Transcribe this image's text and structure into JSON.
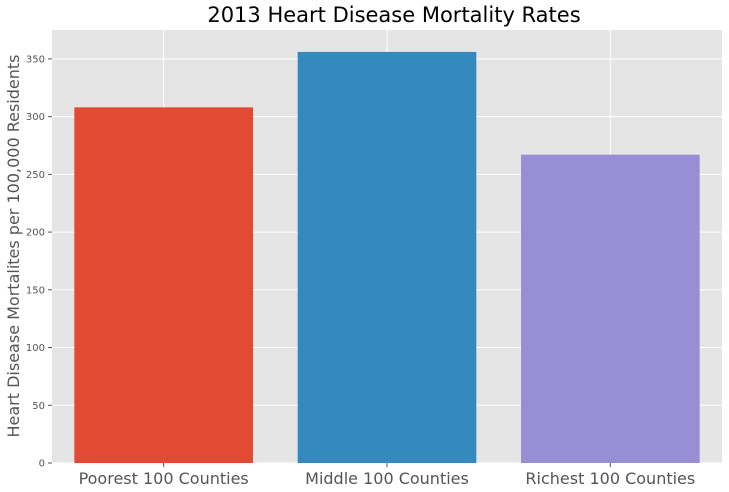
{
  "chart_data": {
    "type": "bar",
    "title": "2013 Heart Disease Mortality Rates",
    "xlabel": "",
    "ylabel": "Heart Disease Mortalites per 100,000 Residents",
    "categories": [
      "Poorest 100 Counties",
      "Middle 100 Counties",
      "Richest 100 Counties"
    ],
    "values": [
      308,
      356,
      267
    ],
    "colors": [
      "#E24A33",
      "#348ABD",
      "#988ED5"
    ],
    "ylim": [
      0,
      375
    ],
    "yticks": [
      0,
      50,
      100,
      150,
      200,
      250,
      300,
      350
    ],
    "grid": true,
    "style": {
      "plot_background": "#E5E5E5",
      "grid_color": "#FFFFFF"
    }
  }
}
